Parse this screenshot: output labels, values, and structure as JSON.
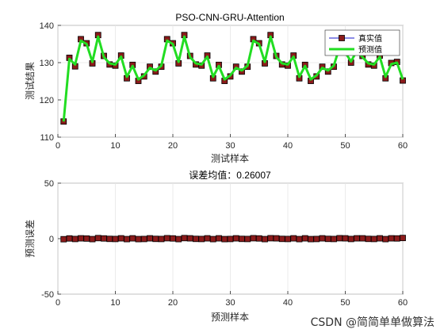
{
  "chart_data": [
    {
      "type": "line",
      "title": "PSO-CNN-GRU-Attention",
      "xlabel": "测试样本",
      "ylabel": "测试结果",
      "xlim": [
        0,
        60
      ],
      "ylim": [
        110,
        140
      ],
      "xticks": [
        "0",
        "10",
        "20",
        "30",
        "40",
        "50",
        "60"
      ],
      "yticks": [
        "110",
        "120",
        "130",
        "140"
      ],
      "grid": true,
      "legend_position": "top-right",
      "x": [
        1,
        2,
        3,
        4,
        5,
        6,
        7,
        8,
        9,
        10,
        11,
        12,
        13,
        14,
        15,
        16,
        17,
        18,
        19,
        20,
        21,
        22,
        23,
        24,
        25,
        26,
        27,
        28,
        29,
        30,
        31,
        32,
        33,
        34,
        35,
        36,
        37,
        38,
        39,
        40,
        41,
        42,
        43,
        44,
        45,
        46,
        47,
        48,
        49,
        50,
        51,
        52,
        53,
        54,
        55,
        56,
        57,
        58,
        59,
        60
      ],
      "series": [
        {
          "name": "真实值",
          "color": "#1a1acc",
          "marker_color": "#8b1a1a",
          "values": [
            114.2,
            131.3,
            129.0,
            136.3,
            135.2,
            129.8,
            137.4,
            131.8,
            129.5,
            129.2,
            131.9,
            125.8,
            129.4,
            125.1,
            126.3,
            128.9,
            127.6,
            128.9,
            136.3,
            135.2,
            129.8,
            137.4,
            131.8,
            129.5,
            129.2,
            131.9,
            125.8,
            129.4,
            125.1,
            126.3,
            128.9,
            127.6,
            128.9,
            136.3,
            135.2,
            129.8,
            137.4,
            131.8,
            129.5,
            129.2,
            131.9,
            125.8,
            129.4,
            125.1,
            126.3,
            128.9,
            127.6,
            128.9,
            134.5,
            133.0,
            130.0,
            133.5,
            131.8,
            129.5,
            129.2,
            131.9,
            125.8,
            129.9,
            130.2,
            125.2
          ]
        },
        {
          "name": "预测值",
          "color": "#22dd22",
          "values": [
            114.2,
            131.0,
            129.5,
            135.9,
            135.0,
            130.2,
            137.0,
            131.5,
            129.8,
            129.5,
            131.6,
            126.2,
            129.1,
            125.5,
            126.6,
            128.6,
            127.9,
            129.2,
            135.9,
            135.0,
            130.2,
            137.0,
            131.5,
            129.8,
            129.5,
            131.6,
            126.2,
            129.1,
            125.5,
            126.6,
            128.6,
            127.9,
            129.2,
            135.9,
            135.0,
            130.2,
            137.0,
            131.5,
            129.8,
            129.5,
            131.6,
            126.2,
            129.1,
            125.5,
            126.6,
            128.6,
            127.9,
            129.2,
            134.1,
            132.7,
            130.3,
            133.2,
            131.5,
            129.8,
            129.5,
            131.6,
            126.2,
            129.6,
            130.0,
            125.5
          ]
        }
      ]
    },
    {
      "type": "line",
      "title": "误差均值：0.26007",
      "xlabel": "预测样本",
      "ylabel": "预测误差",
      "xlim": [
        0,
        60
      ],
      "ylim": [
        -50,
        50
      ],
      "xticks": [
        "0",
        "10",
        "20",
        "30",
        "40",
        "50",
        "60"
      ],
      "yticks": [
        "-50",
        "0",
        "50"
      ],
      "grid": true,
      "series": [
        {
          "color": "#000000",
          "marker_color": "#8b1a1a",
          "x": [
            1,
            2,
            3,
            4,
            5,
            6,
            7,
            8,
            9,
            10,
            11,
            12,
            13,
            14,
            15,
            16,
            17,
            18,
            19,
            20,
            21,
            22,
            23,
            24,
            25,
            26,
            27,
            28,
            29,
            30,
            31,
            32,
            33,
            34,
            35,
            36,
            37,
            38,
            39,
            40,
            41,
            42,
            43,
            44,
            45,
            46,
            47,
            48,
            49,
            50,
            51,
            52,
            53,
            54,
            55,
            56,
            57,
            58,
            59,
            60
          ],
          "values": [
            -0.5,
            0.2,
            -0.3,
            0.3,
            0.1,
            -0.4,
            0.5,
            0.2,
            -0.2,
            -0.3,
            0.3,
            -0.4,
            0.3,
            -0.4,
            -0.3,
            0.3,
            -0.2,
            -0.3,
            0.4,
            0.2,
            -0.4,
            0.5,
            0.3,
            -0.2,
            -0.3,
            0.3,
            -0.4,
            0.3,
            -0.4,
            -0.3,
            0.3,
            -0.2,
            -0.3,
            0.4,
            0.2,
            -0.4,
            0.4,
            0.3,
            -0.2,
            -0.3,
            0.3,
            -0.4,
            0.3,
            -0.4,
            -0.3,
            0.3,
            -0.2,
            -0.3,
            0.4,
            0.3,
            -0.3,
            0.3,
            0.3,
            -0.2,
            -0.3,
            0.3,
            -0.4,
            0.3,
            0.2,
            0.6
          ]
        }
      ]
    }
  ],
  "watermark": "CSDN @简简单单做算法"
}
